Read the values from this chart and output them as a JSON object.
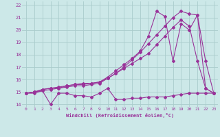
{
  "bg_color": "#cce8e8",
  "grid_color": "#aacccc",
  "line_color": "#993399",
  "xlabel": "Windchill (Refroidissement éolien,°C)",
  "xlim": [
    -0.5,
    23.5
  ],
  "ylim": [
    13.8,
    22.3
  ],
  "yticks": [
    14,
    15,
    16,
    17,
    18,
    19,
    20,
    21,
    22
  ],
  "xticks": [
    0,
    1,
    2,
    3,
    4,
    5,
    6,
    7,
    8,
    9,
    10,
    11,
    12,
    13,
    14,
    15,
    16,
    17,
    18,
    19,
    20,
    21,
    22,
    23
  ],
  "series": [
    {
      "x": [
        0,
        1,
        2,
        3,
        4,
        5,
        6,
        7,
        8,
        9,
        10,
        11,
        12,
        13,
        14,
        15,
        16,
        17,
        18,
        19,
        20,
        21,
        22,
        23
      ],
      "y": [
        14.9,
        14.9,
        15.1,
        14.0,
        14.9,
        14.9,
        14.7,
        14.7,
        14.6,
        14.9,
        15.3,
        14.4,
        14.4,
        14.5,
        14.5,
        14.6,
        14.6,
        14.6,
        14.7,
        14.8,
        14.9,
        14.9,
        14.9,
        14.9
      ]
    },
    {
      "x": [
        0,
        1,
        2,
        3,
        4,
        5,
        6,
        7,
        8,
        9,
        10,
        11,
        12,
        13,
        14,
        15,
        16,
        17,
        18,
        19,
        20,
        21,
        22,
        23
      ],
      "y": [
        14.9,
        15.0,
        15.2,
        15.3,
        15.3,
        15.4,
        15.5,
        15.5,
        15.6,
        15.7,
        16.1,
        16.5,
        16.9,
        17.3,
        17.7,
        18.1,
        18.8,
        19.5,
        20.2,
        20.8,
        20.3,
        17.5,
        15.3,
        14.9
      ]
    },
    {
      "x": [
        0,
        1,
        2,
        3,
        4,
        5,
        6,
        7,
        8,
        9,
        10,
        11,
        12,
        13,
        14,
        15,
        16,
        17,
        18,
        19,
        20,
        21,
        22,
        23
      ],
      "y": [
        14.9,
        15.0,
        15.2,
        15.3,
        15.4,
        15.5,
        15.6,
        15.7,
        15.7,
        15.8,
        16.2,
        16.7,
        17.2,
        17.7,
        18.3,
        19.5,
        21.5,
        21.1,
        17.5,
        20.5,
        20.0,
        21.2,
        17.5,
        14.9
      ]
    },
    {
      "x": [
        0,
        1,
        2,
        3,
        4,
        5,
        6,
        7,
        8,
        9,
        10,
        11,
        12,
        13,
        14,
        15,
        16,
        17,
        18,
        19,
        20,
        21,
        22,
        23
      ],
      "y": [
        14.9,
        15.0,
        15.1,
        15.2,
        15.3,
        15.5,
        15.6,
        15.6,
        15.7,
        15.8,
        16.1,
        16.5,
        17.0,
        17.6,
        18.2,
        18.9,
        19.6,
        20.3,
        21.0,
        21.5,
        21.3,
        21.2,
        15.3,
        14.9
      ]
    }
  ]
}
